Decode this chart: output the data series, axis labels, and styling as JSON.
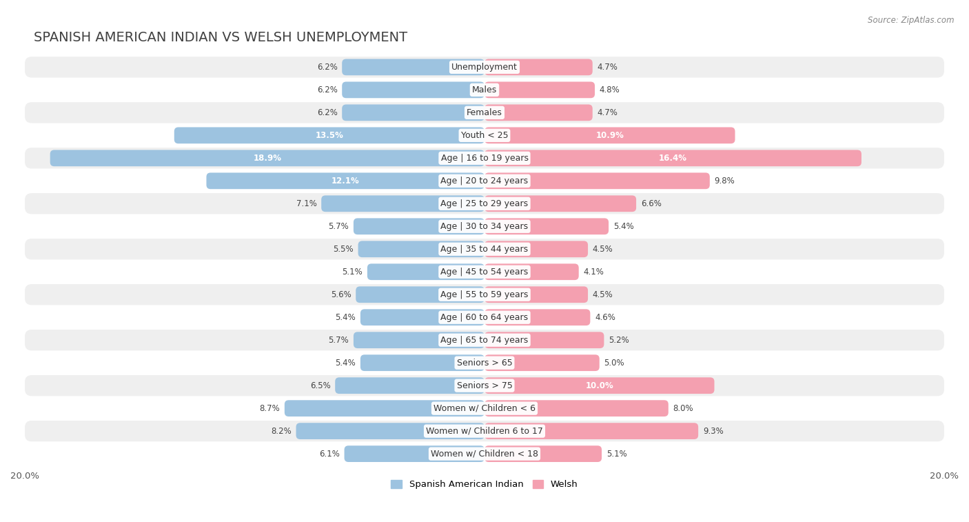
{
  "title": "Spanish American Indian vs Welsh Unemployment",
  "source": "Source: ZipAtlas.com",
  "categories": [
    "Unemployment",
    "Males",
    "Females",
    "Youth < 25",
    "Age | 16 to 19 years",
    "Age | 20 to 24 years",
    "Age | 25 to 29 years",
    "Age | 30 to 34 years",
    "Age | 35 to 44 years",
    "Age | 45 to 54 years",
    "Age | 55 to 59 years",
    "Age | 60 to 64 years",
    "Age | 65 to 74 years",
    "Seniors > 65",
    "Seniors > 75",
    "Women w/ Children < 6",
    "Women w/ Children 6 to 17",
    "Women w/ Children < 18"
  ],
  "spanish_american_indian": [
    6.2,
    6.2,
    6.2,
    13.5,
    18.9,
    12.1,
    7.1,
    5.7,
    5.5,
    5.1,
    5.6,
    5.4,
    5.7,
    5.4,
    6.5,
    8.7,
    8.2,
    6.1
  ],
  "welsh": [
    4.7,
    4.8,
    4.7,
    10.9,
    16.4,
    9.8,
    6.6,
    5.4,
    4.5,
    4.1,
    4.5,
    4.6,
    5.2,
    5.0,
    10.0,
    8.0,
    9.3,
    5.1
  ],
  "color_blue": "#9dc3e0",
  "color_pink": "#f4a0b0",
  "color_blue_dark": "#5b9bd5",
  "color_pink_dark": "#e8727f",
  "row_color_light": "#efefef",
  "row_color_white": "#ffffff",
  "max_value": 20.0,
  "title_fontsize": 14,
  "label_fontsize": 9,
  "value_fontsize": 8.5,
  "legend_fontsize": 9.5
}
